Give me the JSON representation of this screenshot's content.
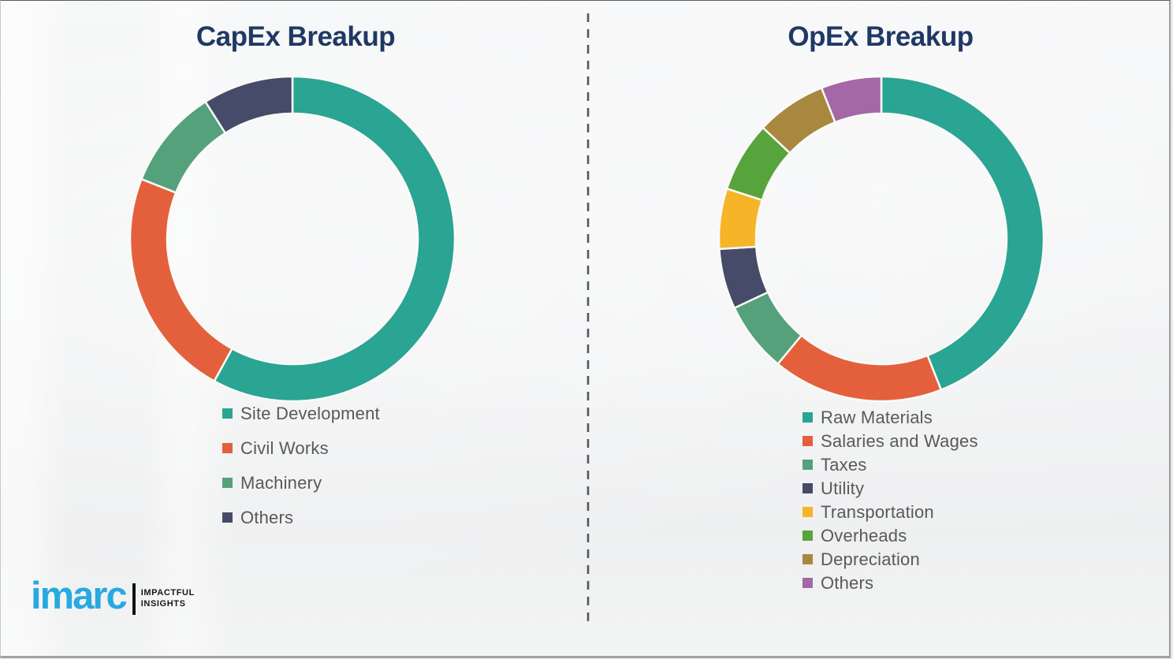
{
  "page": {
    "background_color": "#f1f2f3",
    "title_color": "#203864",
    "legend_text_color": "#595959",
    "divider_color": "#55565a",
    "segment_gap_color": "#fafaf8"
  },
  "chart_data": [
    {
      "type": "pie",
      "subtype": "donut",
      "title": "CapEx Breakup",
      "legend_position": "bottom",
      "start_angle_deg": 0,
      "direction": "clockwise",
      "categories": [
        "Site Development",
        "Civil Works",
        "Machinery",
        "Others"
      ],
      "values": [
        58,
        23,
        10,
        9
      ],
      "unit": "percent-share",
      "colors": [
        "#2aa493",
        "#e4603c",
        "#55a17c",
        "#454b68"
      ]
    },
    {
      "type": "pie",
      "subtype": "donut",
      "title": "OpEx Breakup",
      "legend_position": "bottom",
      "start_angle_deg": 0,
      "direction": "clockwise",
      "categories": [
        "Raw Materials",
        "Salaries and Wages",
        "Taxes",
        "Utility",
        "Transportation",
        "Overheads",
        "Depreciation",
        "Others"
      ],
      "values": [
        44,
        17,
        7,
        6,
        6,
        7,
        7,
        6
      ],
      "unit": "percent-share",
      "colors": [
        "#2aa493",
        "#e4603c",
        "#55a17c",
        "#454b68",
        "#f6b428",
        "#58a43c",
        "#a8883f",
        "#a368a5"
      ]
    }
  ],
  "logo": {
    "brand": "imarc",
    "brand_color": "#29a9e0",
    "tagline": [
      "IMPACTFUL",
      "INSIGHTS"
    ]
  }
}
